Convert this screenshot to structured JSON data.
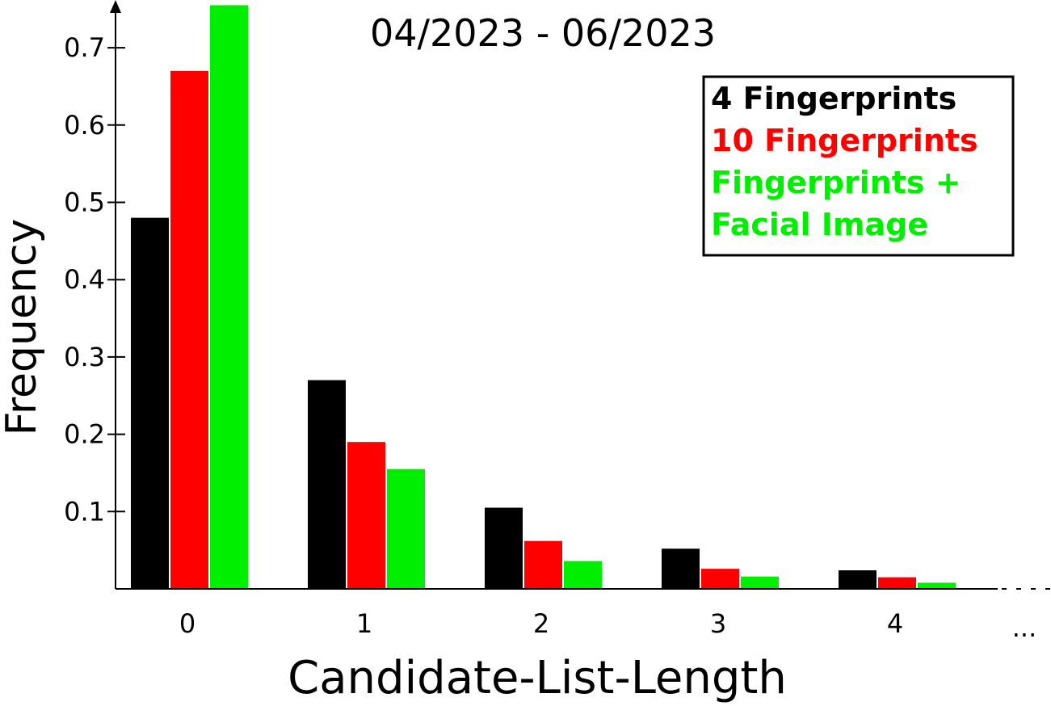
{
  "chart_data": {
    "type": "bar",
    "title": "04/2023 - 06/2023",
    "xlabel": "Candidate-List-Length",
    "ylabel": "Frequency",
    "categories": [
      "0",
      "1",
      "2",
      "3",
      "4"
    ],
    "x_continuation": "...",
    "ylim": [
      0,
      0.77
    ],
    "yticks": [
      "0.1",
      "0.2",
      "0.3",
      "0.4",
      "0.5",
      "0.6",
      "0.7"
    ],
    "grid": false,
    "legend_position": "top-right",
    "series": [
      {
        "name": "4 Fingerprints",
        "color": "#000000",
        "values": [
          0.48,
          0.27,
          0.105,
          0.052,
          0.024
        ]
      },
      {
        "name": "10 Fingerprints",
        "color": "#ff0000",
        "values": [
          0.67,
          0.19,
          0.062,
          0.026,
          0.015
        ]
      },
      {
        "name": "Fingerprints + Facial Image",
        "color": "#00ee00",
        "values": [
          0.755,
          0.155,
          0.036,
          0.016,
          0.008
        ]
      }
    ],
    "legend_lines": [
      {
        "text": "4 Fingerprints",
        "color": "#000000"
      },
      {
        "text": "10 Fingerprints",
        "color": "#ff0000"
      },
      {
        "text": "Fingerprints +",
        "color": "#00ee00"
      },
      {
        "text": "Facial Image",
        "color": "#00ee00"
      }
    ]
  }
}
